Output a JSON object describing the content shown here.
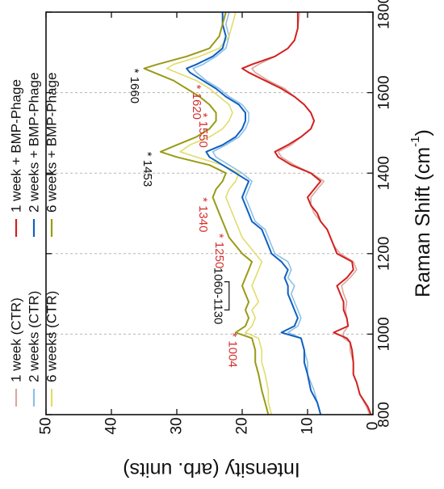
{
  "chart_data": {
    "type": "line",
    "orientation": "rotated-90-ccw",
    "xlabel": "Raman Shift (cm",
    "xlabel_sup": "-1",
    "xlabel_close": ")",
    "ylabel": "Intensity (arb. units)",
    "xlim": [
      800,
      1800
    ],
    "ylim": [
      0,
      50
    ],
    "x_ticks": [
      "800",
      "1000",
      "1200",
      "1400",
      "1600",
      "1800"
    ],
    "y_ticks": [
      "0",
      "10",
      "20",
      "30",
      "40",
      "50"
    ],
    "dashed_gridlines_x": [
      1000,
      1200,
      1400,
      1600
    ],
    "legend": {
      "placement": "top-left",
      "entries": [
        {
          "label": "1 week (CTR)",
          "color": "#d9a9a0"
        },
        {
          "label": "2 weeks (CTR)",
          "color": "#8cc0e8"
        },
        {
          "label": "6 weeks (CTR)",
          "color": "#e2dc6c"
        },
        {
          "label": "1 week + BMP-Phage",
          "color": "#d42020"
        },
        {
          "label": "2 weeks + BMP-Phage",
          "color": "#1060c0"
        },
        {
          "label": "6 weeks + BMP-Phage",
          "color": "#9a9a18"
        }
      ]
    },
    "peak_labels": [
      {
        "text": "1004",
        "x": 1004,
        "y": 21.5,
        "color": "#d43030"
      },
      {
        "text": "1250",
        "x": 1250,
        "y": 23.5,
        "color": "#d43030"
      },
      {
        "text": "1340",
        "x": 1340,
        "y": 26,
        "color": "#d43030"
      },
      {
        "text": "1453",
        "x": 1453,
        "y": 34.5,
        "color": "#111111"
      },
      {
        "text": "1550",
        "x": 1550,
        "y": 26,
        "color": "#d43030"
      },
      {
        "text": "1620",
        "x": 1620,
        "y": 27,
        "color": "#d43030"
      },
      {
        "text": "1660",
        "x": 1660,
        "y": 36.5,
        "color": "#111111"
      }
    ],
    "range_annotation": {
      "text": "1060-1130",
      "x1": 1060,
      "x2": 1130,
      "y": 22
    },
    "series": [
      {
        "name": "1 week (CTR)",
        "color": "#d9a9a0",
        "x": [
          800,
          820,
          850,
          880,
          900,
          930,
          960,
          980,
          990,
          1004,
          1020,
          1040,
          1060,
          1080,
          1100,
          1120,
          1140,
          1160,
          1180,
          1200,
          1220,
          1240,
          1260,
          1280,
          1300,
          1320,
          1340,
          1360,
          1380,
          1400,
          1420,
          1440,
          1453,
          1470,
          1490,
          1510,
          1530,
          1550,
          1570,
          1590,
          1610,
          1630,
          1650,
          1660,
          1670,
          1690,
          1710,
          1730,
          1760,
          1800
        ],
        "y": [
          0.5,
          1,
          2,
          2.5,
          3,
          3,
          3.5,
          3.5,
          4.5,
          4.5,
          3.8,
          4,
          4.2,
          4,
          4.5,
          4.8,
          3.5,
          2.5,
          3,
          5,
          6,
          6.5,
          7,
          8,
          9,
          9.5,
          9.5,
          8.5,
          7.5,
          9.5,
          12,
          14,
          14.5,
          12.5,
          11,
          9.5,
          9,
          9.5,
          10.5,
          12,
          13.5,
          16,
          18,
          18.5,
          17.5,
          15,
          13,
          12,
          11.5,
          11.2
        ]
      },
      {
        "name": "2 weeks (CTR)",
        "color": "#8cc0e8",
        "x": [
          800,
          830,
          860,
          900,
          930,
          960,
          990,
          1004,
          1020,
          1040,
          1060,
          1080,
          1100,
          1120,
          1140,
          1160,
          1180,
          1200,
          1220,
          1240,
          1260,
          1280,
          1300,
          1320,
          1340,
          1360,
          1380,
          1400,
          1420,
          1440,
          1453,
          1470,
          1490,
          1510,
          1530,
          1550,
          1570,
          1590,
          1610,
          1630,
          1650,
          1660,
          1670,
          1690,
          1710,
          1740,
          1770,
          1800
        ],
        "y": [
          8,
          8.5,
          9,
          10,
          10,
          10.5,
          11,
          13,
          11.5,
          11,
          11.5,
          12,
          12.5,
          12,
          13,
          12.5,
          13,
          15,
          15.5,
          16,
          16.5,
          18,
          18.5,
          19,
          19.5,
          19,
          18.5,
          20,
          22,
          24,
          24.5,
          22.5,
          20.5,
          19.5,
          19,
          19,
          20,
          22,
          23.5,
          25.5,
          27,
          27.5,
          26,
          24,
          22.5,
          22,
          22.5,
          22
        ]
      },
      {
        "name": "6 weeks (CTR)",
        "color": "#e2dc6c",
        "x": [
          800,
          830,
          860,
          900,
          930,
          960,
          990,
          1004,
          1020,
          1040,
          1060,
          1080,
          1100,
          1120,
          1140,
          1160,
          1180,
          1200,
          1220,
          1240,
          1260,
          1280,
          1300,
          1320,
          1340,
          1360,
          1380,
          1400,
          1420,
          1440,
          1453,
          1470,
          1490,
          1510,
          1530,
          1550,
          1570,
          1590,
          1610,
          1630,
          1650,
          1660,
          1670,
          1690,
          1710,
          1740,
          1770,
          1800
        ],
        "y": [
          15.5,
          16,
          16,
          16.5,
          17,
          17,
          17.5,
          19.5,
          18.5,
          18,
          18.5,
          17.5,
          18,
          18.5,
          18,
          17.5,
          17,
          18,
          19,
          20,
          20.5,
          21,
          21.5,
          22,
          22.5,
          22,
          21,
          20.5,
          23,
          27,
          29.5,
          28,
          25,
          23,
          22,
          21.5,
          22,
          23.5,
          25,
          27,
          30,
          31.5,
          30.5,
          26.5,
          23.5,
          22,
          21.5,
          21
        ]
      },
      {
        "name": "1 week + BMP-Phage",
        "color": "#d42020",
        "x": [
          800,
          820,
          850,
          880,
          900,
          930,
          960,
          980,
          990,
          1004,
          1020,
          1040,
          1060,
          1080,
          1100,
          1120,
          1140,
          1160,
          1180,
          1200,
          1220,
          1240,
          1260,
          1280,
          1300,
          1320,
          1340,
          1360,
          1380,
          1400,
          1420,
          1440,
          1453,
          1470,
          1490,
          1510,
          1530,
          1550,
          1570,
          1590,
          1610,
          1630,
          1650,
          1660,
          1670,
          1690,
          1710,
          1730,
          1760,
          1800
        ],
        "y": [
          0.3,
          0.8,
          2,
          2.5,
          3,
          3,
          3.2,
          3.5,
          4,
          6,
          3.8,
          4,
          4.5,
          4.5,
          5,
          5.5,
          4,
          3,
          3.2,
          5.5,
          6,
          6.5,
          7,
          8,
          8.5,
          9.5,
          10,
          9,
          8,
          9.5,
          12.5,
          14.5,
          15,
          13,
          11,
          9.5,
          9,
          9.5,
          10.5,
          12,
          14,
          16.5,
          19,
          20,
          18.5,
          15,
          13,
          12,
          11.5,
          11.5
        ]
      },
      {
        "name": "2 weeks + BMP-Phage",
        "color": "#1060c0",
        "x": [
          800,
          830,
          860,
          900,
          930,
          960,
          990,
          1004,
          1020,
          1040,
          1060,
          1080,
          1100,
          1120,
          1140,
          1160,
          1180,
          1200,
          1220,
          1240,
          1260,
          1280,
          1300,
          1320,
          1340,
          1360,
          1380,
          1400,
          1420,
          1440,
          1453,
          1470,
          1490,
          1510,
          1530,
          1550,
          1570,
          1590,
          1610,
          1630,
          1650,
          1660,
          1670,
          1690,
          1710,
          1740,
          1770,
          1800
        ],
        "y": [
          8,
          8.5,
          9.5,
          10,
          10.5,
          10.5,
          11,
          14,
          12,
          11.5,
          12,
          12.5,
          13,
          13,
          13.5,
          13,
          14,
          15.5,
          16,
          16.5,
          17,
          18.5,
          19,
          19.5,
          20,
          19.5,
          19,
          21,
          23,
          25,
          25.5,
          23,
          21,
          20,
          19.5,
          19.5,
          20.5,
          22.5,
          24,
          26,
          28,
          28.5,
          27,
          24.5,
          23,
          22.5,
          23,
          23
        ]
      },
      {
        "name": "6 weeks + BMP-Phage",
        "color": "#9a9a18",
        "x": [
          800,
          830,
          860,
          900,
          930,
          960,
          990,
          1004,
          1020,
          1040,
          1060,
          1080,
          1100,
          1120,
          1140,
          1160,
          1180,
          1200,
          1220,
          1240,
          1260,
          1280,
          1300,
          1320,
          1340,
          1360,
          1380,
          1400,
          1420,
          1440,
          1453,
          1470,
          1490,
          1510,
          1530,
          1550,
          1570,
          1590,
          1610,
          1630,
          1650,
          1660,
          1670,
          1690,
          1710,
          1740,
          1770,
          1800
        ],
        "y": [
          16,
          16.5,
          17,
          17.5,
          18,
          18,
          18.5,
          21,
          19.5,
          19,
          19.5,
          19,
          19.5,
          20,
          19.5,
          19,
          18.5,
          20,
          21,
          22,
          22.5,
          23,
          23.5,
          24,
          24.5,
          24,
          23,
          22.5,
          25,
          30,
          32.5,
          30,
          27,
          25,
          24,
          24,
          25,
          26.5,
          28.5,
          30.5,
          33.5,
          35,
          33,
          28.5,
          25,
          23.5,
          23,
          22.5
        ]
      }
    ]
  }
}
